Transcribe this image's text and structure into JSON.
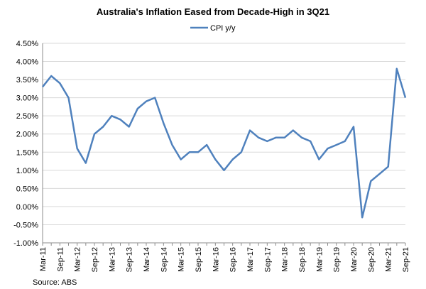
{
  "chart_data": {
    "type": "line",
    "title": "Australia's Inflation Eased from Decade-High in 3Q21",
    "source": "Source: ABS",
    "legend_position": "top-center",
    "series_color": "#4F81BD",
    "ylim": [
      -1.0,
      4.5
    ],
    "y_ticks": [
      "4.50%",
      "4.00%",
      "3.50%",
      "3.00%",
      "2.50%",
      "2.00%",
      "1.50%",
      "1.00%",
      "0.50%",
      "0.00%",
      "-0.50%",
      "-1.00%"
    ],
    "y_tick_values": [
      4.5,
      4.0,
      3.5,
      3.0,
      2.5,
      2.0,
      1.5,
      1.0,
      0.5,
      0.0,
      -0.5,
      -1.0
    ],
    "x_tick_labels": [
      "Mar-11",
      "Sep-11",
      "Mar-12",
      "Sep-12",
      "Mar-13",
      "Sep-13",
      "Mar-14",
      "Sep-14",
      "Mar-15",
      "Sep-15",
      "Mar-16",
      "Sep-16",
      "Mar-17",
      "Sep-17",
      "Mar-18",
      "Sep-18",
      "Mar-19",
      "Sep-19",
      "Mar-20",
      "Sep-20",
      "Mar-21",
      "Sep-21"
    ],
    "categories": [
      "Mar-11",
      "Jun-11",
      "Sep-11",
      "Dec-11",
      "Mar-12",
      "Jun-12",
      "Sep-12",
      "Dec-12",
      "Mar-13",
      "Jun-13",
      "Sep-13",
      "Dec-13",
      "Mar-14",
      "Jun-14",
      "Sep-14",
      "Dec-14",
      "Mar-15",
      "Jun-15",
      "Sep-15",
      "Dec-15",
      "Mar-16",
      "Jun-16",
      "Sep-16",
      "Dec-16",
      "Mar-17",
      "Jun-17",
      "Sep-17",
      "Dec-17",
      "Mar-18",
      "Jun-18",
      "Sep-18",
      "Dec-18",
      "Mar-19",
      "Jun-19",
      "Sep-19",
      "Dec-19",
      "Mar-20",
      "Jun-20",
      "Sep-20",
      "Dec-20",
      "Mar-21",
      "Jun-21",
      "Sep-21"
    ],
    "series": [
      {
        "name": "CPI y/y",
        "values": [
          3.3,
          3.6,
          3.4,
          3.0,
          1.6,
          1.2,
          2.0,
          2.2,
          2.5,
          2.4,
          2.2,
          2.7,
          2.9,
          3.0,
          2.3,
          1.7,
          1.3,
          1.5,
          1.5,
          1.7,
          1.3,
          1.0,
          1.3,
          1.5,
          2.1,
          1.9,
          1.8,
          1.9,
          1.9,
          2.1,
          1.9,
          1.8,
          1.3,
          1.6,
          1.7,
          1.8,
          2.2,
          -0.3,
          0.7,
          0.9,
          1.1,
          3.8,
          3.0
        ]
      }
    ]
  }
}
